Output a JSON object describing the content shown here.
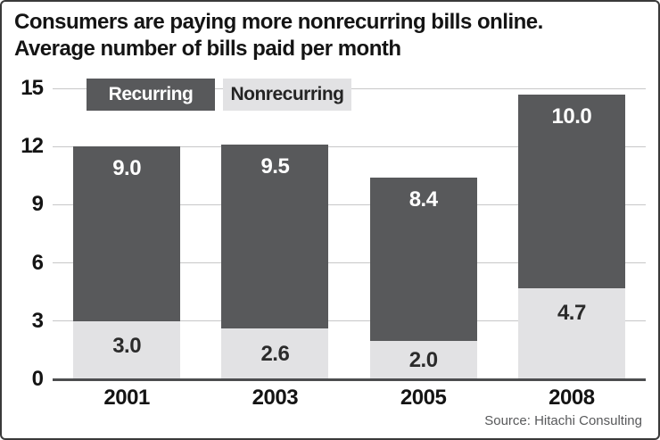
{
  "header": {
    "title_line1": "Consumers are paying more nonrecurring bills online.",
    "title_line2": "Average number of bills paid per month"
  },
  "legend": [
    {
      "label": "Recurring",
      "swatch": "dark-gray"
    },
    {
      "label": "Nonrecurring",
      "swatch": "light-gray"
    }
  ],
  "footer": {
    "source": "Source: Hitachi Consulting"
  },
  "colors": {
    "recurring_fill": "#58595b",
    "nonrecurring_fill": "#e2e2e4",
    "gridline": "#c7c7c8",
    "axis_baseline": "#4c4d4f",
    "source_text": "#58595b"
  },
  "chart_data": {
    "type": "bar",
    "stacked": true,
    "title": "Consumers are paying more nonrecurring bills online. Average number of bills paid per month",
    "categories": [
      "2001",
      "2003",
      "2005",
      "2008"
    ],
    "series": [
      {
        "name": "Nonrecurring",
        "values": [
          3.0,
          2.6,
          2.0,
          4.7
        ],
        "labels": [
          "3.0",
          "2.6",
          "2.0",
          "4.7"
        ],
        "position": "bottom"
      },
      {
        "name": "Recurring",
        "values": [
          9.0,
          9.5,
          8.4,
          10.0
        ],
        "labels": [
          "9.0",
          "9.5",
          "8.4",
          "10.0"
        ],
        "position": "top"
      }
    ],
    "totals": [
      12.0,
      12.1,
      10.4,
      14.7
    ],
    "xlabel": "",
    "ylabel": "",
    "ylim": [
      0,
      15
    ],
    "yticks": [
      0,
      3,
      6,
      9,
      12,
      15
    ],
    "grid": true,
    "legend_position": "top-left",
    "source": "Source: Hitachi Consulting"
  }
}
